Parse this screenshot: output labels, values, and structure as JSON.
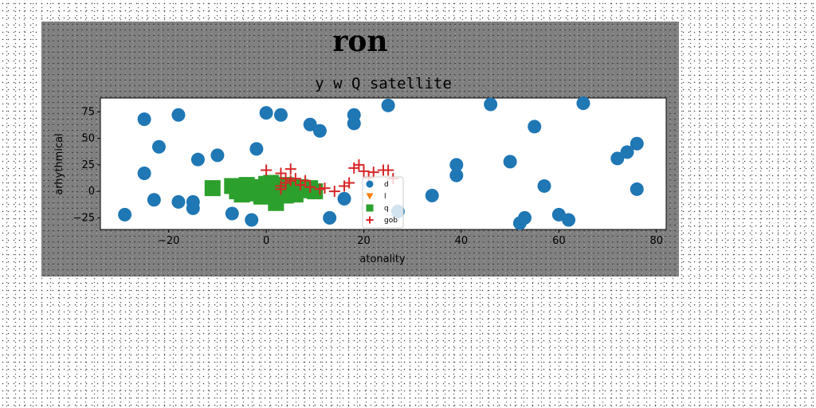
{
  "chart_data": {
    "type": "scatter",
    "suptitle": "ron",
    "title": "y w Q satellite",
    "xlabel": "atonality",
    "ylabel": "arhythmical",
    "xlim": [
      -34,
      82
    ],
    "ylim": [
      -36,
      88
    ],
    "xticks": [
      -20,
      0,
      20,
      40,
      60,
      80
    ],
    "yticks": [
      -25,
      0,
      25,
      50,
      75
    ],
    "xtick_labels": [
      "−20",
      "0",
      "20",
      "40",
      "60",
      "80"
    ],
    "ytick_labels": [
      "−25",
      "0",
      "25",
      "50",
      "75"
    ],
    "legend_position": "lower-center",
    "grid": false,
    "series": [
      {
        "name": "d",
        "marker": "circle",
        "color": "#1f77b4",
        "points": [
          [
            -29,
            -22
          ],
          [
            -25,
            68
          ],
          [
            -25,
            17
          ],
          [
            -23,
            -8
          ],
          [
            -22,
            42
          ],
          [
            -18,
            72
          ],
          [
            -18,
            -10
          ],
          [
            -15,
            -10
          ],
          [
            -15,
            -16
          ],
          [
            -14,
            30
          ],
          [
            -10,
            34
          ],
          [
            -7,
            -21
          ],
          [
            -3,
            -27
          ],
          [
            -2,
            40
          ],
          [
            0,
            74
          ],
          [
            3,
            72
          ],
          [
            9,
            63
          ],
          [
            11,
            57
          ],
          [
            13,
            -25
          ],
          [
            16,
            -7
          ],
          [
            18,
            72
          ],
          [
            18,
            64
          ],
          [
            25,
            81
          ],
          [
            27,
            -19
          ],
          [
            34,
            -4
          ],
          [
            39,
            25
          ],
          [
            39,
            15
          ],
          [
            46,
            82
          ],
          [
            50,
            28
          ],
          [
            53,
            -25
          ],
          [
            52,
            -30
          ],
          [
            55,
            61
          ],
          [
            57,
            5
          ],
          [
            60,
            -22
          ],
          [
            62,
            -27
          ],
          [
            65,
            83
          ],
          [
            72,
            31
          ],
          [
            74,
            37
          ],
          [
            76,
            45
          ],
          [
            76,
            2
          ]
        ]
      },
      {
        "name": "l",
        "marker": "triangle-down",
        "color": "#ff7f0e",
        "points": []
      },
      {
        "name": "q",
        "marker": "square",
        "color": "#2ca02c",
        "points": [
          [
            -11,
            3
          ],
          [
            -7,
            5
          ],
          [
            -6,
            0
          ],
          [
            -4,
            6
          ],
          [
            -3,
            3
          ],
          [
            -2,
            -2
          ],
          [
            -1,
            4
          ],
          [
            0,
            1
          ],
          [
            0,
            7
          ],
          [
            1,
            -4
          ],
          [
            2,
            3
          ],
          [
            2,
            -11
          ],
          [
            3,
            2
          ],
          [
            4,
            6
          ],
          [
            4,
            -4
          ],
          [
            5,
            1
          ],
          [
            6,
            -3
          ],
          [
            7,
            4
          ],
          [
            8,
            1
          ],
          [
            9,
            3
          ],
          [
            10,
            0
          ],
          [
            -5,
            -3
          ],
          [
            -1,
            -5
          ],
          [
            1,
            8
          ]
        ]
      },
      {
        "name": "gob",
        "marker": "plus",
        "color": "#d62728",
        "points": [
          [
            0,
            20
          ],
          [
            3,
            17
          ],
          [
            4,
            12
          ],
          [
            5,
            21
          ],
          [
            3,
            5
          ],
          [
            4,
            8
          ],
          [
            5,
            10
          ],
          [
            6,
            12
          ],
          [
            7,
            6
          ],
          [
            8,
            10
          ],
          [
            11,
            2
          ],
          [
            12,
            3
          ],
          [
            14,
            0
          ],
          [
            16,
            5
          ],
          [
            17,
            8
          ],
          [
            18,
            22
          ],
          [
            19,
            25
          ],
          [
            20,
            19
          ],
          [
            21,
            13
          ],
          [
            22,
            18
          ],
          [
            24,
            20
          ],
          [
            25,
            20
          ],
          [
            26,
            12
          ],
          [
            3,
            2
          ],
          [
            9,
            4
          ]
        ]
      }
    ]
  }
}
